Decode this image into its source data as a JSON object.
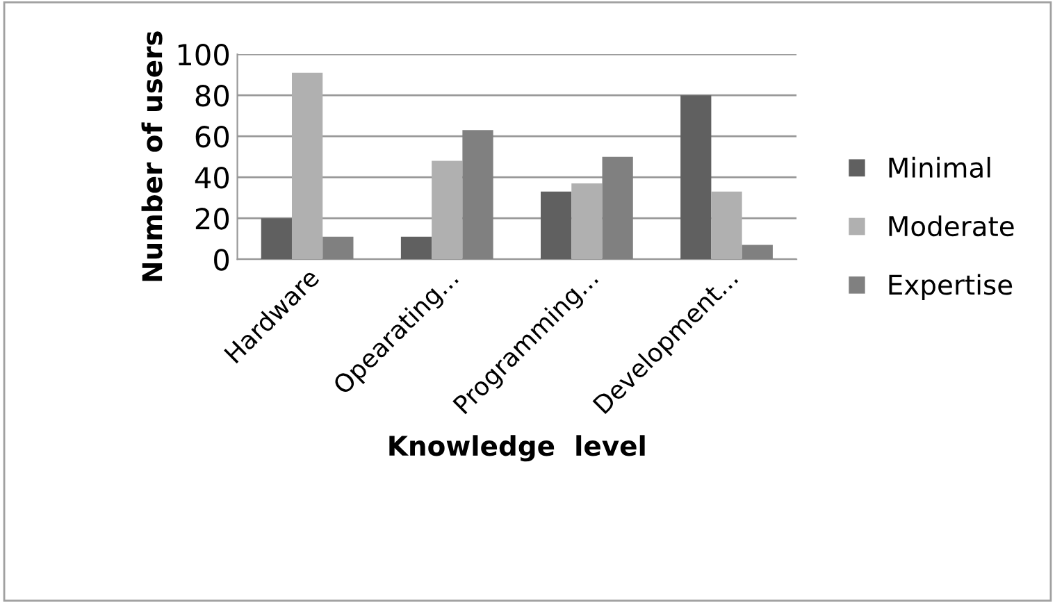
{
  "chart_data": {
    "type": "bar",
    "xlabel": "Knowledge  level",
    "ylabel": "Number of users",
    "categories": [
      "Hardware",
      "Opearating...",
      "Programming...",
      "Development..."
    ],
    "series": [
      {
        "name": "Minimal",
        "color": "#606060",
        "values": [
          20,
          11,
          33,
          80
        ]
      },
      {
        "name": "Moderate",
        "color": "#b0b0b0",
        "values": [
          91,
          48,
          37,
          33
        ]
      },
      {
        "name": "Expertise",
        "color": "#808080",
        "values": [
          11,
          63,
          50,
          7
        ]
      }
    ],
    "ylim": [
      0,
      100
    ],
    "yticks": [
      0,
      20,
      40,
      60,
      80,
      100
    ],
    "grid": "y",
    "legend": "right"
  }
}
